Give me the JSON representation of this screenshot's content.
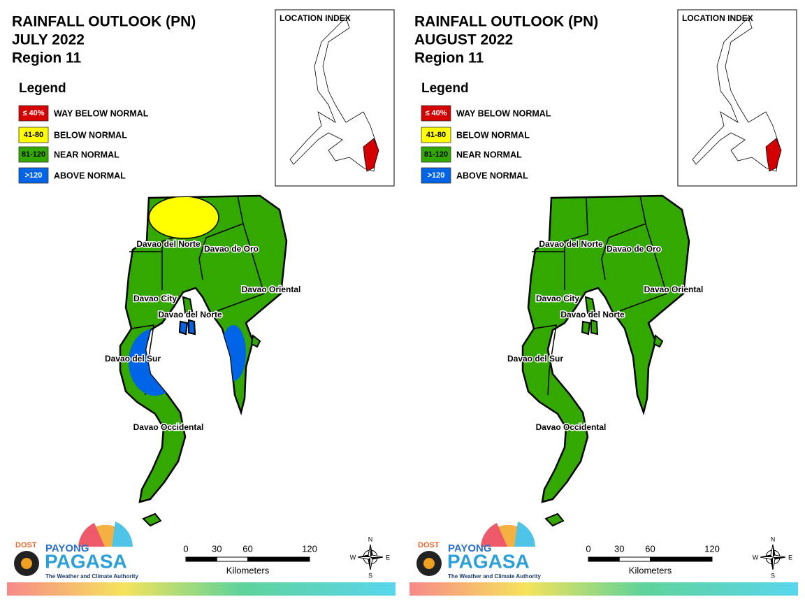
{
  "panels": [
    {
      "title": "RAINFALL OUTLOOK (PN)",
      "period": "JULY 2022",
      "region": "Region 11",
      "location_index": "LOCATION INDEX",
      "legend": {
        "title": "Legend",
        "items": [
          {
            "swatch": "≤ 40%",
            "label": "WAY BELOW NORMAL",
            "color": "#d40000",
            "text_color": "#ffffff"
          },
          {
            "swatch": "41-80",
            "label": "BELOW NORMAL",
            "color": "#ffff00",
            "text_color": "#000000"
          },
          {
            "swatch": "81-120",
            "label": "NEAR NORMAL",
            "color": "#33a800",
            "text_color": "#000000"
          },
          {
            "swatch": ">120",
            "label": "ABOVE NORMAL",
            "color": "#0064e6",
            "text_color": "#ffffff"
          }
        ]
      },
      "provinces": [
        "Davao del Norte",
        "Davao de Oro",
        "Davao Oriental",
        "Davao City",
        "Davao del Norte",
        "Davao del Sur",
        "Davao Occidental"
      ],
      "scale": {
        "ticks": [
          0,
          30,
          60,
          120
        ],
        "unit": "Kilometers"
      },
      "compass": {
        "n": "N",
        "e": "E",
        "s": "S",
        "w": "W"
      },
      "logo": {
        "agency": "DOST",
        "brand_top": "PAYONG",
        "brand": "PAGASA",
        "tagline": "The Weather and Climate Authority"
      }
    },
    {
      "title": "RAINFALL OUTLOOK (PN)",
      "period": "AUGUST 2022",
      "region": "Region 11",
      "location_index": "LOCATION INDEX",
      "legend": {
        "title": "Legend",
        "items": [
          {
            "swatch": "≤ 40%",
            "label": "WAY BELOW NORMAL",
            "color": "#d40000",
            "text_color": "#ffffff"
          },
          {
            "swatch": "41-80",
            "label": "BELOW NORMAL",
            "color": "#ffff00",
            "text_color": "#000000"
          },
          {
            "swatch": "81-120",
            "label": "NEAR NORMAL",
            "color": "#33a800",
            "text_color": "#000000"
          },
          {
            "swatch": ">120",
            "label": "ABOVE NORMAL",
            "color": "#0064e6",
            "text_color": "#ffffff"
          }
        ]
      },
      "provinces": [
        "Davao del Norte",
        "Davao de Oro",
        "Davao Oriental",
        "Davao City",
        "Davao del Norte",
        "Davao del Sur",
        "Davao Occidental"
      ],
      "scale": {
        "ticks": [
          0,
          30,
          60,
          120
        ],
        "unit": "Kilometers"
      },
      "compass": {
        "n": "N",
        "e": "E",
        "s": "S",
        "w": "W"
      },
      "logo": {
        "agency": "DOST",
        "brand_top": "PAYONG",
        "brand": "PAGASA",
        "tagline": "The Weather and Climate Authority"
      }
    }
  ]
}
